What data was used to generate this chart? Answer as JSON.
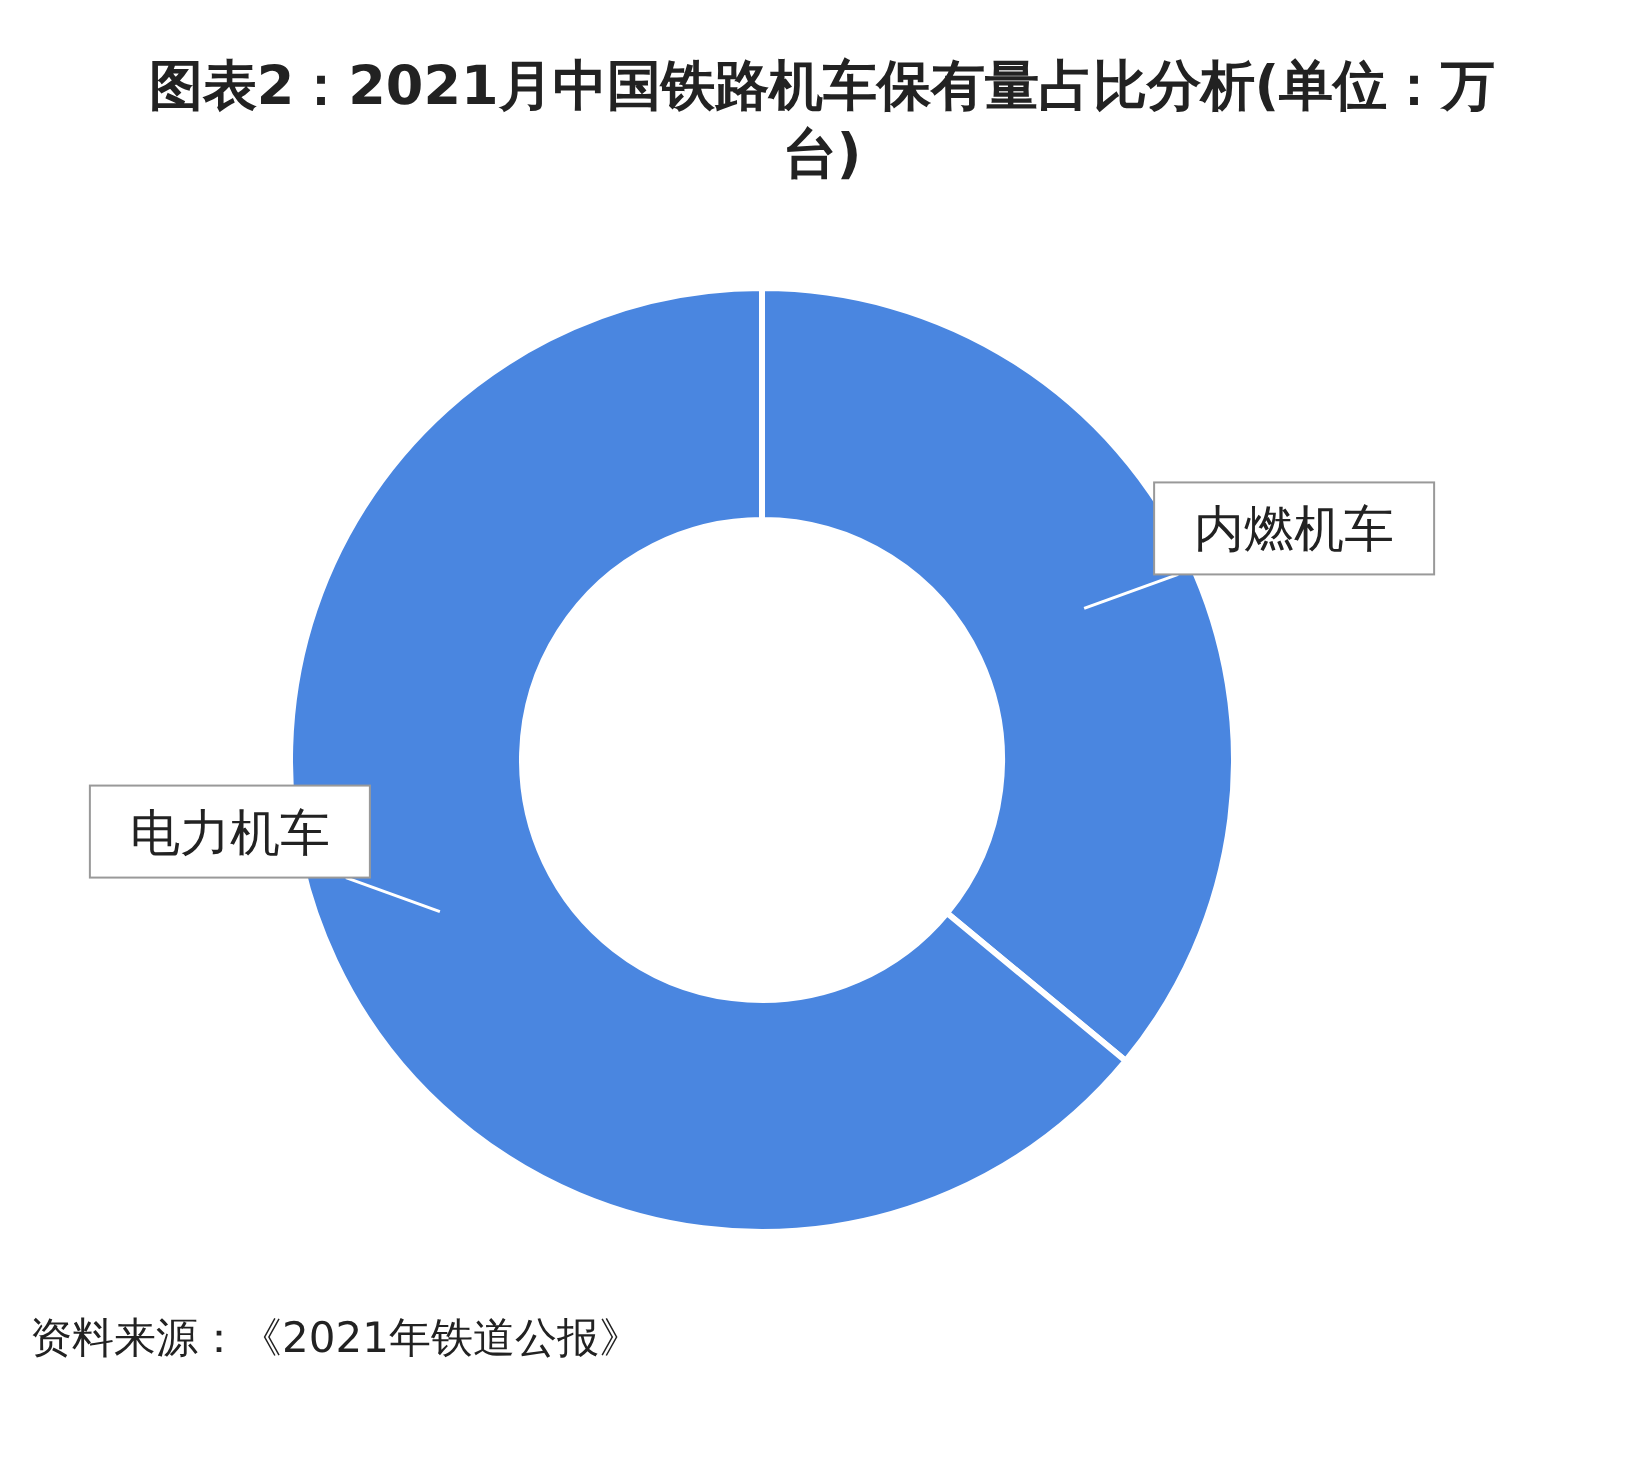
{
  "chart_data": {
    "type": "donut",
    "title": "图表2：2021月中国铁路机车保有量占比分析(单位：万台)",
    "categories": [
      "内燃机车",
      "电力机车"
    ],
    "values": [
      36,
      64
    ],
    "colors": [
      "#4a86e0",
      "#4a86e0"
    ],
    "annotations": [
      "资料来源：《2021年铁道公报》"
    ]
  }
}
